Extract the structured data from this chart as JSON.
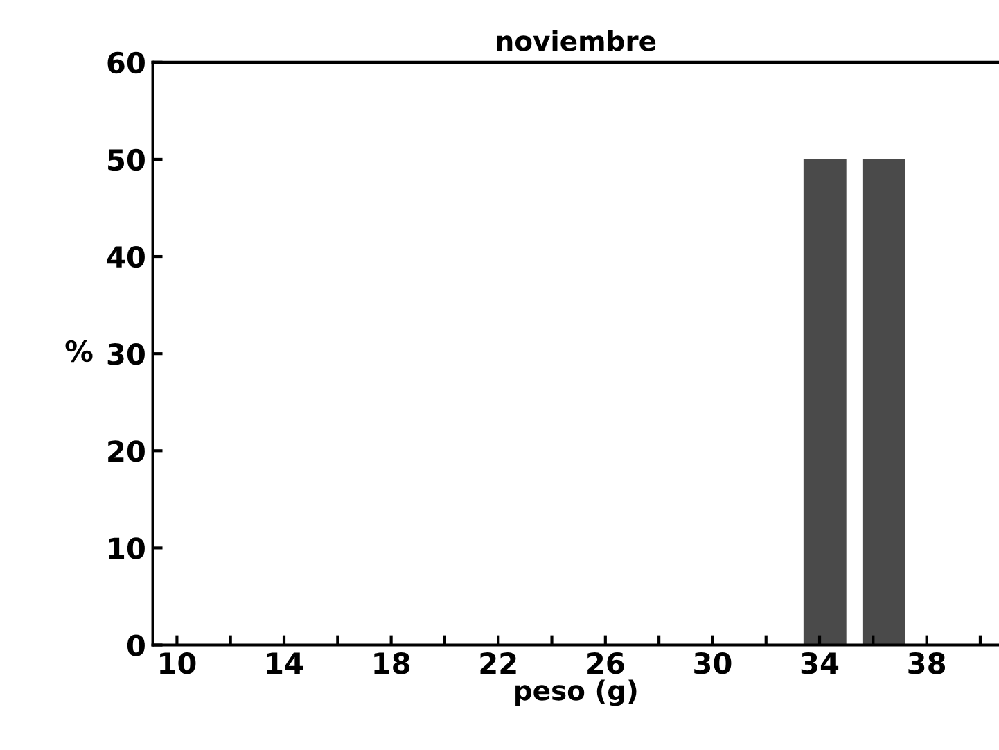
{
  "chart_data": {
    "type": "bar",
    "title": "noviembre",
    "xlabel": "peso (g)",
    "ylabel": "%",
    "x": [
      34.2,
      36.4
    ],
    "values": [
      50,
      50
    ],
    "color": "#4a4a4a",
    "xlim": [
      9.1,
      40.7
    ],
    "xticks": [
      10,
      {
        "value": 12,
        "label": null
      },
      14,
      {
        "value": 16,
        "label": null
      },
      18,
      {
        "value": 20,
        "label": null
      },
      22,
      {
        "value": 24,
        "label": null
      },
      26,
      {
        "value": 28,
        "label": null
      },
      30,
      {
        "value": 32,
        "label": null
      },
      34,
      {
        "value": 36,
        "label": null
      },
      38,
      {
        "value": 40,
        "label": null
      }
    ],
    "ylim": [
      0,
      60
    ],
    "yticks": [
      0,
      10,
      20,
      30,
      40,
      50,
      60
    ],
    "grid": false,
    "legend": false
  }
}
